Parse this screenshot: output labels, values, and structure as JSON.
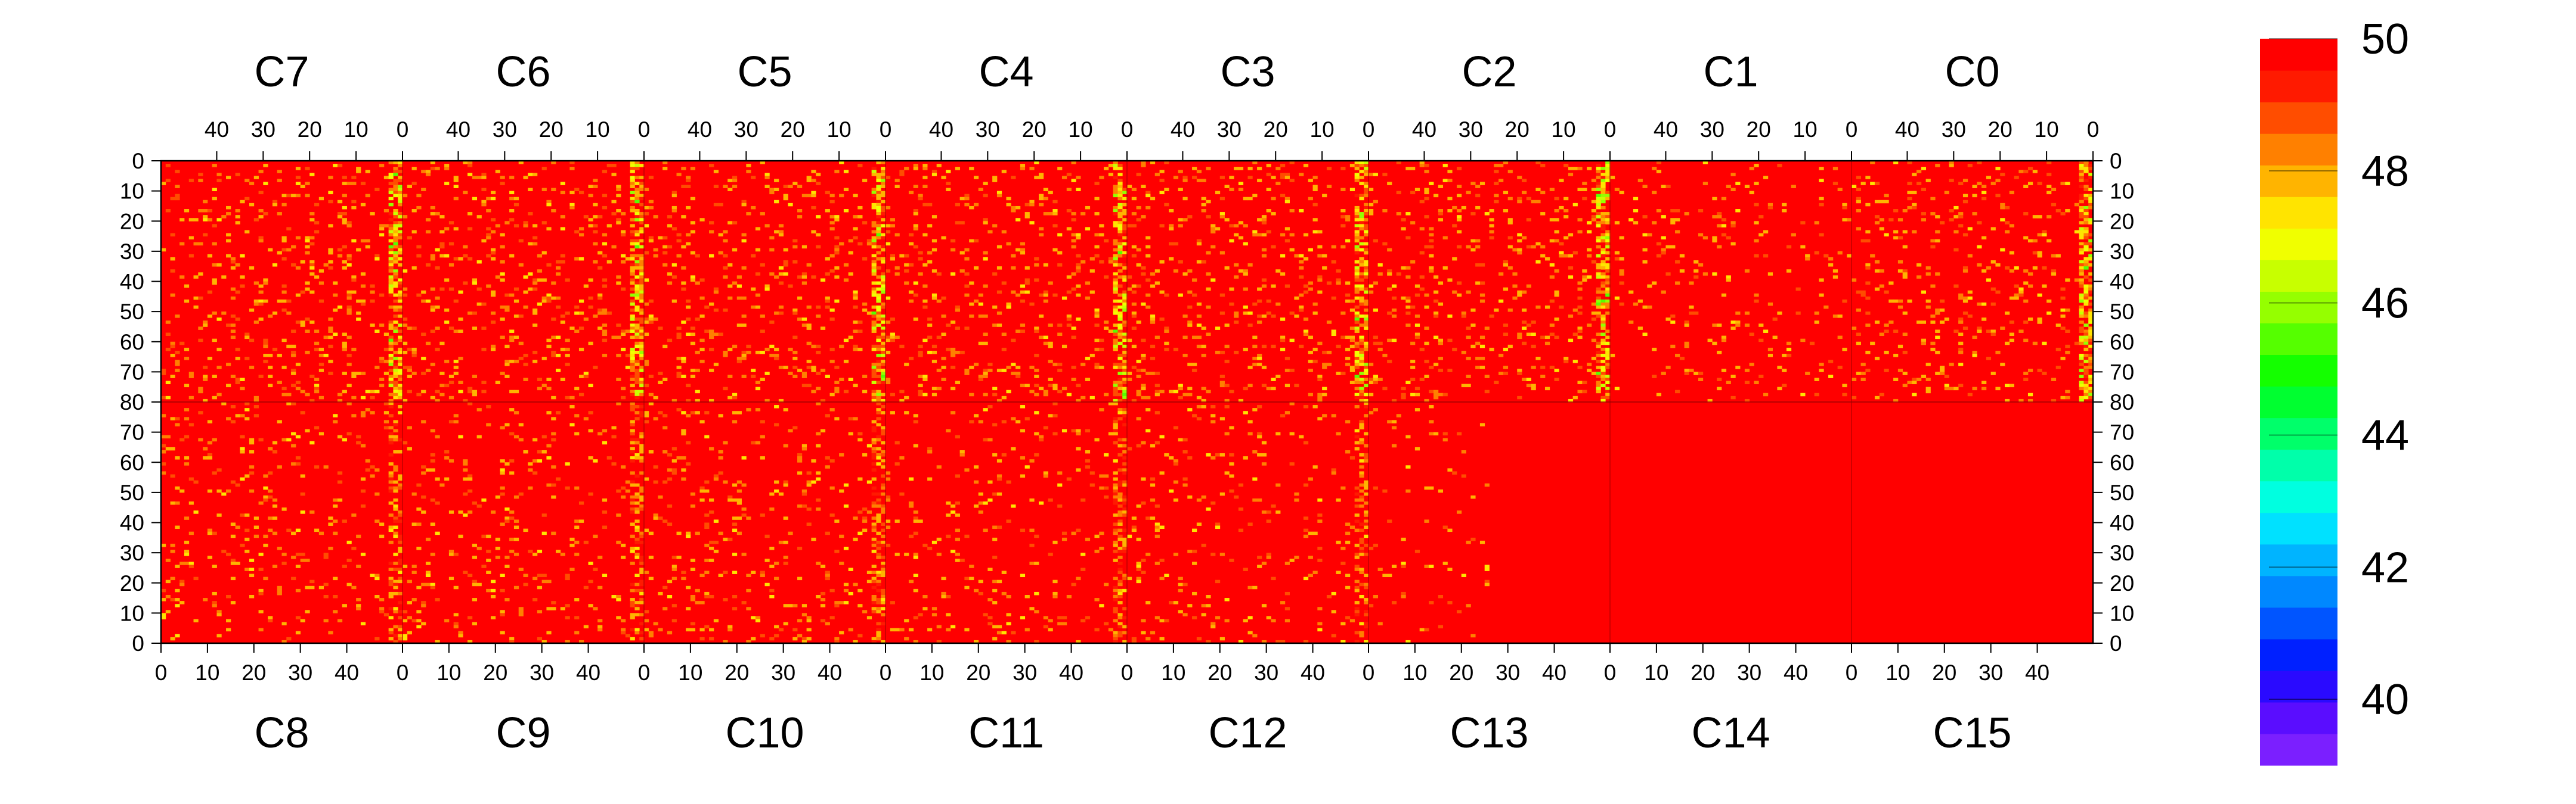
{
  "chart_data": {
    "type": "heatmap",
    "title": "",
    "top_chips": [
      "C7",
      "C6",
      "C5",
      "C4",
      "C3",
      "C2",
      "C1",
      "C0"
    ],
    "bottom_chips": [
      "C8",
      "C9",
      "C10",
      "C11",
      "C12",
      "C13",
      "C14",
      "C15"
    ],
    "top_x_ticks": [
      "40",
      "30",
      "20",
      "10",
      "0"
    ],
    "bottom_x_ticks": [
      "0",
      "10",
      "20",
      "30",
      "40"
    ],
    "left_y_ticks": [
      "0",
      "10",
      "20",
      "30",
      "40",
      "50",
      "60",
      "70",
      "80",
      "70",
      "60",
      "50",
      "40",
      "30",
      "20",
      "10",
      "0"
    ],
    "right_y_ticks": [
      "0",
      "10",
      "20",
      "30",
      "40",
      "50",
      "60",
      "70",
      "80",
      "70",
      "60",
      "50",
      "40",
      "30",
      "20",
      "10",
      "0"
    ],
    "columns_per_chip": 52,
    "rows_per_half": 80,
    "zlim": [
      39,
      50
    ],
    "colorbar_ticks": [
      "50",
      "48",
      "46",
      "44",
      "42",
      "40"
    ],
    "colorbar_tick_values": [
      50,
      48,
      46,
      44,
      42,
      40
    ],
    "dominant_value": 50,
    "palette": [
      "#7b1fff",
      "#5a0dff",
      "#2a0aff",
      "#0020ff",
      "#0055ff",
      "#0088ff",
      "#00b4ff",
      "#00e1ff",
      "#00ffe0",
      "#00ffaa",
      "#00ff6a",
      "#00ff30",
      "#14ff00",
      "#55ff00",
      "#95ff00",
      "#c8ff00",
      "#f0ff00",
      "#ffe400",
      "#ffb400",
      "#ff8000",
      "#ff4d00",
      "#ff1a00",
      "#ff0000"
    ],
    "notes_visible": "Mostly saturated red (value ~50); stripes of lower values (yellow/green) near each chip's column-0 edge; chips C0, C1, C13, C14, C15 bottom halves nearly uniform red."
  }
}
